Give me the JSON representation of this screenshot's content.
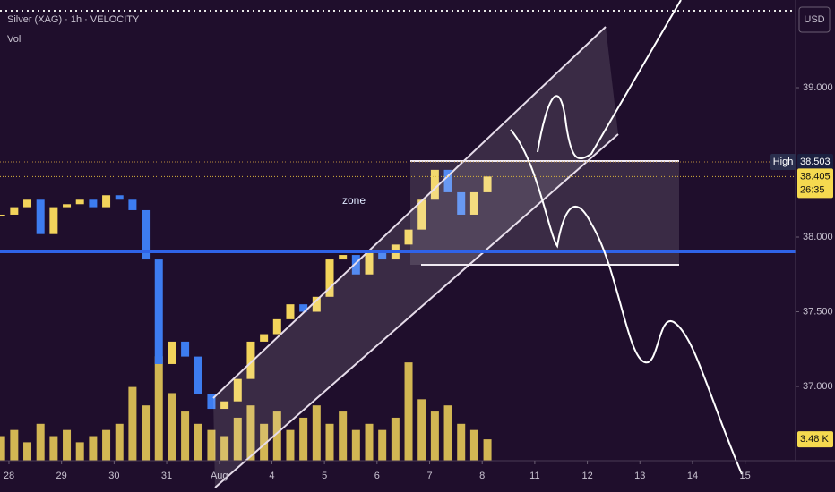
{
  "chart_data": {
    "type": "candlestick",
    "title": "Silver (XAG) · 1h · VELOCITY",
    "subtitle": "Vol",
    "currency": "USD",
    "annotation": "zone",
    "up_color": "#f2d35b",
    "down_color": "#3d7cf0",
    "x": [
      -0.15,
      0.1,
      0.35,
      0.6,
      0.85,
      1.1,
      1.35,
      1.6,
      1.85,
      2.1,
      2.35,
      2.6,
      2.85,
      3.1,
      3.35,
      3.6,
      3.85,
      4.1,
      4.35,
      4.6,
      4.85,
      5.1,
      5.35,
      5.6,
      5.85,
      6.1,
      6.35,
      6.6,
      6.85,
      7.1,
      7.35,
      7.6,
      7.85,
      8.1,
      8.35,
      8.6,
      8.85,
      9.1
    ],
    "series": [
      {
        "color": "#f2d35b",
        "values": [
          38.15,
          38.2,
          38.25,
          38.02,
          38.2,
          38.22,
          38.25,
          38.2,
          38.28,
          38.25,
          38.18,
          37.85,
          37.15,
          37.3,
          37.2,
          36.95,
          36.85,
          36.9,
          37.05,
          37.3,
          37.35,
          37.45,
          37.55,
          37.5,
          37.6,
          37.85,
          37.88,
          37.75,
          37.9,
          37.85,
          37.95,
          38.05,
          38.25,
          38.45,
          38.3,
          38.15,
          38.3,
          38.405
        ]
      },
      {
        "color": "#f2d35b",
        "axis": "y2",
        "values": [
          4,
          5,
          3,
          6,
          4,
          5,
          3,
          4,
          5,
          6,
          12,
          9,
          17,
          11,
          8,
          6,
          5,
          4,
          7,
          9,
          6,
          8,
          5,
          7,
          9,
          6,
          8,
          5,
          6,
          5,
          7,
          16,
          10,
          8,
          9,
          6,
          5,
          3.48
        ],
        "value_labels": [
          null,
          null,
          null,
          null,
          null,
          null,
          null,
          null,
          null,
          null,
          null,
          null,
          null,
          null,
          null,
          null,
          null,
          null,
          null,
          null,
          null,
          null,
          null,
          null,
          null,
          null,
          null,
          null,
          null,
          null,
          null,
          null,
          null,
          null,
          null,
          null,
          null,
          "3.48 K"
        ]
      }
    ],
    "high": {
      "label": "High",
      "value": 38.503
    },
    "last": {
      "value": 38.405,
      "countdown": "26:35"
    },
    "xlim": [
      -0.17,
      14.96
    ],
    "xticks": [
      {
        "value": 0,
        "label": "28"
      },
      {
        "value": 1,
        "label": "29"
      },
      {
        "value": 2,
        "label": "30"
      },
      {
        "value": 3,
        "label": "31"
      },
      {
        "value": 4,
        "label": "Aug"
      },
      {
        "value": 5,
        "label": "4"
      },
      {
        "value": 6,
        "label": "5"
      },
      {
        "value": 7,
        "label": "6"
      },
      {
        "value": 8,
        "label": "7"
      },
      {
        "value": 9,
        "label": "8"
      },
      {
        "value": 10,
        "label": "11"
      },
      {
        "value": 11,
        "label": "12"
      },
      {
        "value": 12,
        "label": "13"
      },
      {
        "value": 13,
        "label": "14"
      },
      {
        "value": 14,
        "label": "15"
      }
    ],
    "ylim": [
      36.503,
      39.587
    ],
    "yticks": [
      {
        "value": 37,
        "label": "37.000"
      },
      {
        "value": 37.5,
        "label": "37.500"
      },
      {
        "value": 38,
        "label": "38.000"
      },
      {
        "value": 39,
        "label": "39.000"
      }
    ],
    "y2lim": [
      0,
      75
    ]
  }
}
